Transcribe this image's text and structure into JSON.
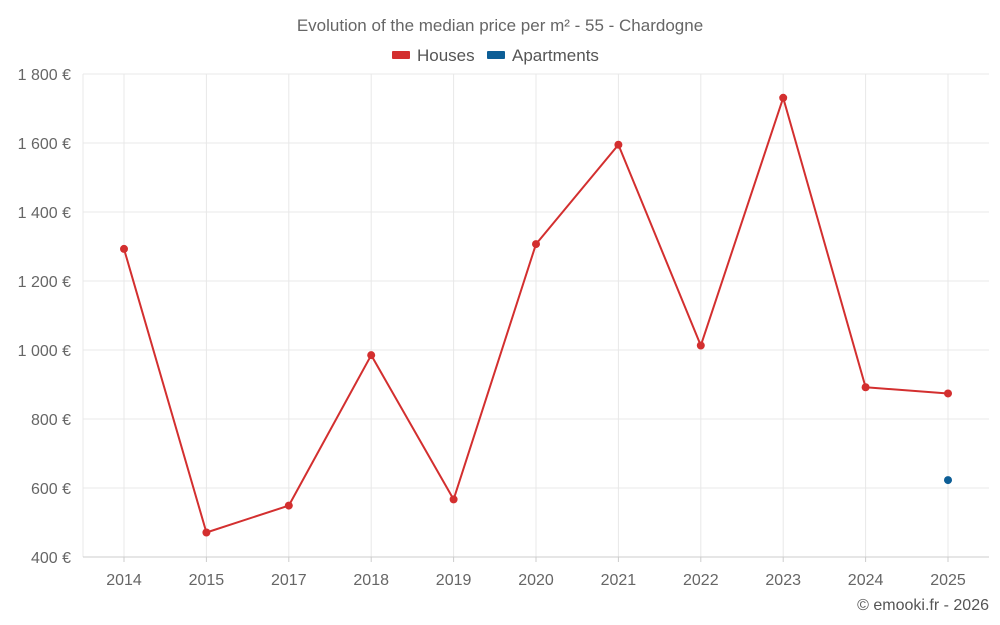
{
  "chart_data": {
    "type": "line",
    "title": "Evolution of the median price per m² - 55 - Chardogne",
    "categories": [
      "2014",
      "2015",
      "2017",
      "2018",
      "2019",
      "2020",
      "2021",
      "2022",
      "2023",
      "2024",
      "2025"
    ],
    "series": [
      {
        "name": "Houses",
        "color": "#d32f2f",
        "values": [
          1293,
          471,
          549,
          985,
          567,
          1307,
          1595,
          1013,
          1731,
          892,
          874
        ]
      },
      {
        "name": "Apartments",
        "color": "#0d5e96",
        "values": [
          null,
          null,
          null,
          null,
          null,
          null,
          null,
          null,
          null,
          null,
          623
        ]
      }
    ],
    "ylim": [
      400,
      1800
    ],
    "yticks": [
      400,
      600,
      800,
      1000,
      1200,
      1400,
      1600,
      1800
    ],
    "ytick_labels": [
      "400 €",
      "600 €",
      "800 €",
      "1 000 €",
      "1 200 €",
      "1 400 €",
      "1 600 €",
      "1 800 €"
    ],
    "xlabel": "",
    "ylabel": "",
    "grid": true,
    "legend_position": "top-center"
  },
  "credit": "© emooki.fr - 2026"
}
